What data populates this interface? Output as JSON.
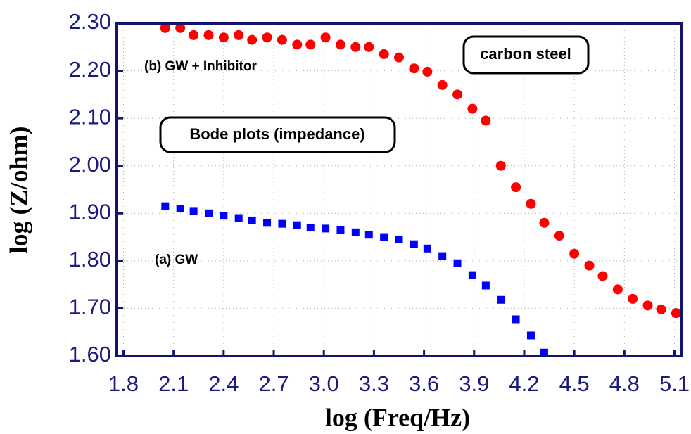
{
  "chart_data": {
    "type": "scatter",
    "x_label": "log (Freq/Hz)",
    "y_label": "log (Z/ohm)",
    "annotations": [
      "(b) GW + Inhibitor",
      "carbon steel",
      "Bode plots (impedance)",
      "(a) GW"
    ],
    "xlim": [
      1.76,
      5.14
    ],
    "ylim": [
      1.6,
      2.3
    ],
    "xticks": [
      1.8,
      2.1,
      2.4,
      2.7,
      {
        "value": 3,
        "label": "3.0"
      },
      3.3,
      3.6,
      3.9,
      4.2,
      4.5,
      4.8,
      5.1
    ],
    "yticks": [
      {
        "value": 1.6,
        "label": "1.60"
      },
      {
        "value": 1.7,
        "label": "1.70"
      },
      {
        "value": 1.8,
        "label": "1.80"
      },
      {
        "value": 1.9,
        "label": "1.90"
      },
      {
        "value": 2.0,
        "label": "2.00"
      },
      {
        "value": 2.1,
        "label": "2.10"
      },
      {
        "value": 2.2,
        "label": "2.20"
      },
      {
        "value": 2.3,
        "label": "2.30"
      }
    ],
    "grid": true,
    "series": [
      {
        "marker": "circle",
        "color": "#ff0000",
        "x": [
          2.05,
          2.14,
          2.22,
          2.31,
          2.4,
          2.49,
          2.57,
          2.66,
          2.75,
          2.84,
          2.92,
          3.01,
          3.1,
          3.19,
          3.27,
          3.36,
          3.45,
          3.54,
          3.62,
          3.71,
          3.8,
          3.89,
          3.97,
          4.06,
          4.15,
          4.24,
          4.32,
          4.41,
          4.5,
          4.59,
          4.67,
          4.76,
          4.85,
          4.94,
          5.02,
          5.11
        ],
        "values": [
          2.29,
          2.29,
          2.275,
          2.275,
          2.27,
          2.275,
          2.265,
          2.27,
          2.265,
          2.255,
          2.255,
          2.27,
          2.255,
          2.25,
          2.25,
          2.235,
          2.228,
          2.205,
          2.198,
          2.17,
          2.15,
          2.12,
          2.095,
          2.0,
          1.955,
          1.92,
          1.88,
          1.853,
          1.815,
          1.79,
          1.768,
          1.74,
          1.72,
          1.706,
          1.698,
          1.69
        ]
      },
      {
        "marker": "square",
        "color": "#0000ff",
        "x": [
          2.05,
          2.14,
          2.22,
          2.31,
          2.4,
          2.49,
          2.57,
          2.66,
          2.75,
          2.84,
          2.92,
          3.01,
          3.1,
          3.19,
          3.27,
          3.36,
          3.45,
          3.54,
          3.62,
          3.71,
          3.8,
          3.89,
          3.97,
          4.06,
          4.15,
          4.24,
          4.32
        ],
        "values": [
          1.915,
          1.91,
          1.905,
          1.9,
          1.895,
          1.89,
          1.885,
          1.88,
          1.878,
          1.875,
          1.87,
          1.868,
          1.865,
          1.86,
          1.855,
          1.85,
          1.845,
          1.835,
          1.826,
          1.81,
          1.795,
          1.77,
          1.748,
          1.718,
          1.677,
          1.643,
          1.607
        ]
      }
    ]
  }
}
